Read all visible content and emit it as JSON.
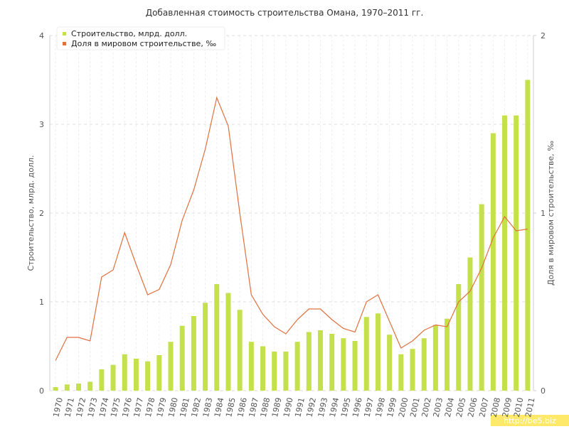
{
  "chart_data": {
    "type": "bar-line",
    "title": "Добавленная стоимость строительства Омана, 1970–2011 гг.",
    "y_label": "Строительство, млрд. долл.",
    "y2_label": "Доля в мировом строительстве, ‰",
    "categories": [
      "1970",
      "1971",
      "1972",
      "1973",
      "1974",
      "1975",
      "1976",
      "1977",
      "1978",
      "1979",
      "1980",
      "1981",
      "1982",
      "1983",
      "1984",
      "1985",
      "1986",
      "1987",
      "1988",
      "1989",
      "1990",
      "1991",
      "1992",
      "1993",
      "1994",
      "1995",
      "1996",
      "1997",
      "1998",
      "1999",
      "2000",
      "2001",
      "2002",
      "2003",
      "2004",
      "2005",
      "2006",
      "2007",
      "2008",
      "2009",
      "2010",
      "2011"
    ],
    "series": [
      {
        "name": "Строительство, млрд. долл.",
        "type": "bar",
        "color": "#c4e04a",
        "values": [
          0.04,
          0.07,
          0.08,
          0.1,
          0.24,
          0.29,
          0.41,
          0.36,
          0.33,
          0.4,
          0.55,
          0.73,
          0.84,
          0.99,
          1.2,
          1.1,
          0.91,
          0.55,
          0.5,
          0.44,
          0.44,
          0.55,
          0.66,
          0.68,
          0.64,
          0.59,
          0.56,
          0.83,
          0.87,
          0.63,
          0.41,
          0.47,
          0.59,
          0.74,
          0.81,
          1.2,
          1.5,
          2.1,
          2.9,
          3.1,
          3.1,
          3.5
        ]
      },
      {
        "name": "Доля в мировом строительстве, ‰",
        "type": "line",
        "axis": "y2",
        "color": "#e07040",
        "values": [
          0.17,
          0.3,
          0.3,
          0.28,
          0.64,
          0.68,
          0.89,
          0.71,
          0.54,
          0.57,
          0.71,
          0.96,
          1.13,
          1.36,
          1.65,
          1.49,
          1.0,
          0.54,
          0.43,
          0.36,
          0.32,
          0.4,
          0.46,
          0.46,
          0.4,
          0.35,
          0.33,
          0.5,
          0.54,
          0.39,
          0.24,
          0.28,
          0.34,
          0.37,
          0.36,
          0.5,
          0.56,
          0.69,
          0.86,
          0.98,
          0.9,
          0.91
        ]
      }
    ],
    "ylim": [
      0,
      4
    ],
    "yticks": [
      0,
      1,
      2,
      3,
      4
    ],
    "y2lim": [
      0,
      2
    ],
    "y2ticks": [
      0,
      1,
      2
    ],
    "grid": true,
    "legend": "top-left",
    "watermark": "http://be5.biz"
  }
}
